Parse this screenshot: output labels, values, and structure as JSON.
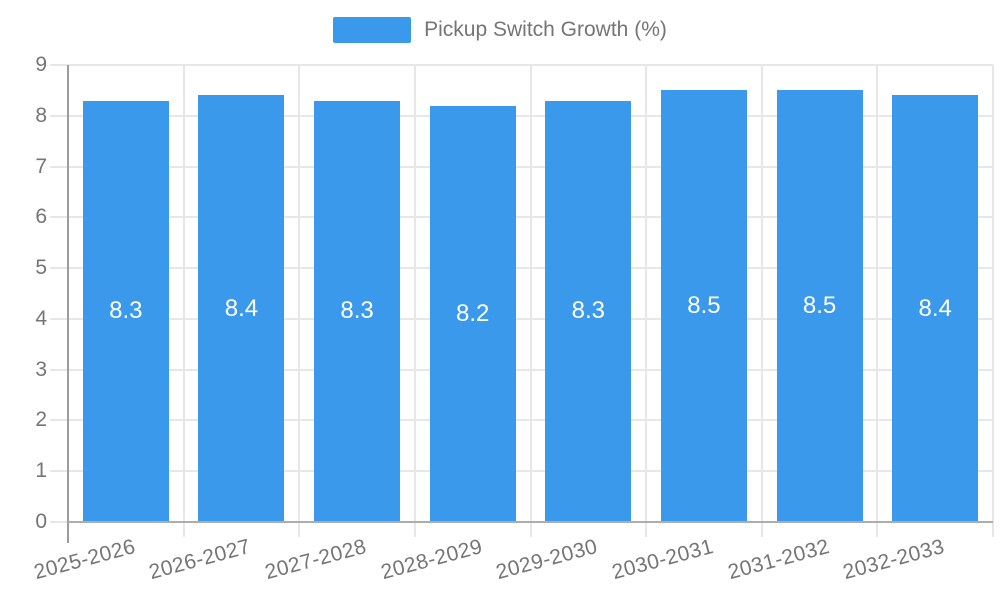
{
  "legend": {
    "series_label": "Pickup Switch Growth (%)"
  },
  "chart_data": {
    "type": "bar",
    "title": "Pickup Switch Growth (%)",
    "xlabel": "",
    "ylabel": "",
    "categories": [
      "2025-2026",
      "2026-2027",
      "2027-2028",
      "2028-2029",
      "2029-2030",
      "2030-2031",
      "2031-2032",
      "2032-2033"
    ],
    "series": [
      {
        "name": "Pickup Switch Growth (%)",
        "values": [
          8.3,
          8.4,
          8.3,
          8.2,
          8.3,
          8.5,
          8.5,
          8.4
        ]
      }
    ],
    "bar_labels": [
      "8.3",
      "8.4",
      "8.3",
      "8.2",
      "8.3",
      "8.5",
      "8.5",
      "8.4"
    ],
    "y_ticks": [
      0,
      1,
      2,
      3,
      4,
      5,
      6,
      7,
      8,
      9
    ],
    "ylim": [
      0,
      9
    ],
    "grid": true,
    "legend_position": "top",
    "x_label_rotation_deg": -15,
    "colors": {
      "bar": "#3B99EC",
      "grid": "#E7E7E7",
      "y_axis": "#9C9C9C",
      "x_axis": "#ADADAD",
      "tick_text": "#757575",
      "bar_label_text": "#FFFFFF"
    }
  }
}
